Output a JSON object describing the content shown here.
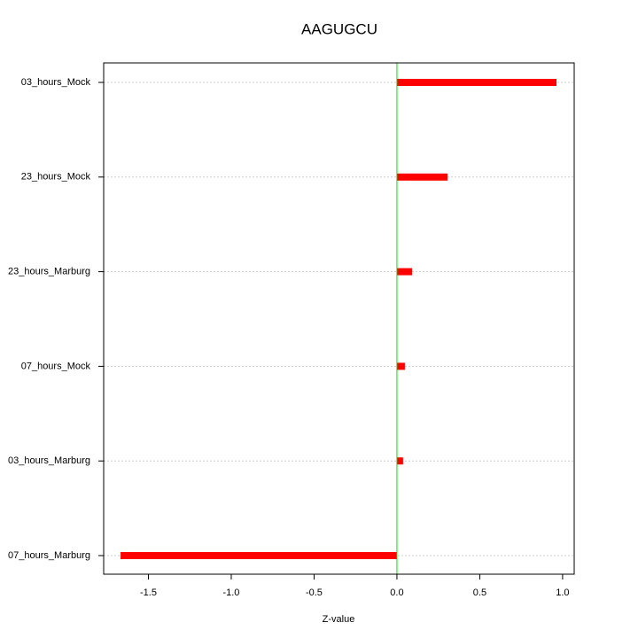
{
  "chart_data": {
    "type": "barh",
    "title": "AAGUGCU",
    "xlabel": "Z-value",
    "categories": [
      "03_hours_Mock",
      "23_hours_Mock",
      "23_hours_Marburg",
      "07_hours_Mock",
      "03_hours_Marburg",
      "07_hours_Marburg"
    ],
    "values": [
      0.963,
      0.305,
      0.091,
      0.048,
      0.037,
      -1.668
    ],
    "color": "#ff0000",
    "zero_line_color": "#00dd00",
    "xlim": [
      -1.77,
      1.07
    ],
    "xticks": [
      {
        "value": -1.5,
        "label": "-1.5"
      },
      {
        "value": -1.0,
        "label": "-1.0"
      },
      -0.5,
      {
        "value": 0.0,
        "label": "0.0"
      },
      0.5,
      {
        "value": 1.0,
        "label": "1.0"
      }
    ],
    "grid": true
  }
}
